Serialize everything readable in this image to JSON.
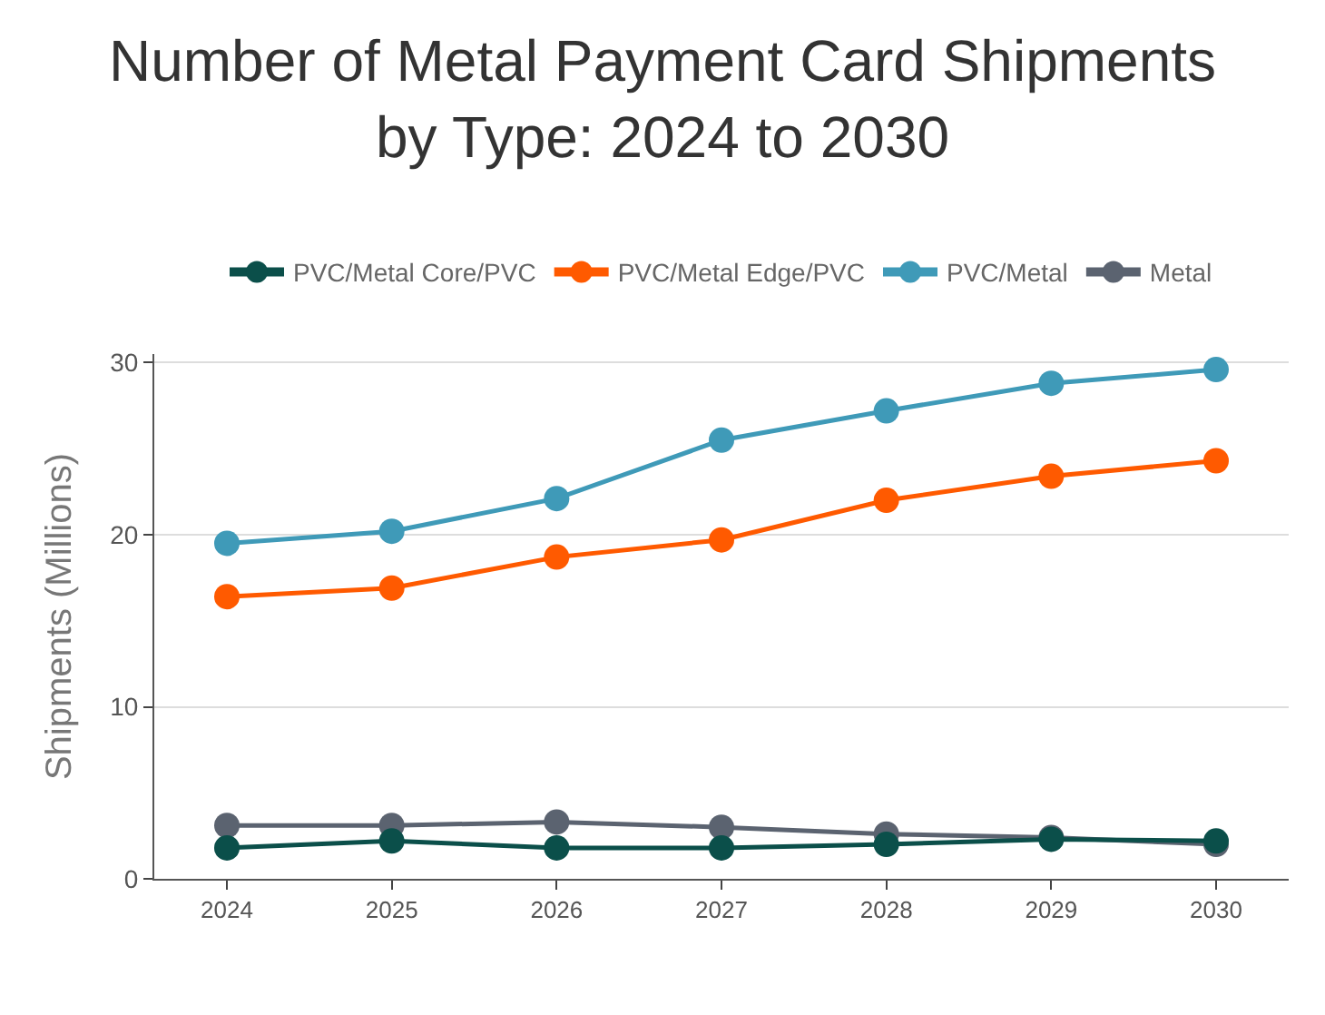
{
  "chart_data": {
    "type": "line",
    "title": "Number of Metal Payment Card Shipments by Type: 2024 to 2030",
    "ylabel": "Shipments (Millions)",
    "categories": [
      "2024",
      "2025",
      "2026",
      "2027",
      "2028",
      "2029",
      "2030"
    ],
    "series": [
      {
        "name": "PVC/Metal Core/PVC",
        "color": "#0b4f4a",
        "values": [
          1.8,
          2.2,
          1.8,
          1.8,
          2.0,
          2.3,
          2.2
        ]
      },
      {
        "name": "PVC/Metal Edge/PVC",
        "color": "#ff5a00",
        "values": [
          16.4,
          16.9,
          18.7,
          19.7,
          22.0,
          23.4,
          24.3
        ]
      },
      {
        "name": "PVC/Metal",
        "color": "#3f9ab8",
        "values": [
          19.5,
          20.2,
          22.1,
          25.5,
          27.2,
          28.8,
          29.6
        ]
      },
      {
        "name": "Metal",
        "color": "#5b6370",
        "values": [
          3.1,
          3.1,
          3.3,
          3.0,
          2.6,
          2.4,
          2.0
        ]
      }
    ],
    "ylim": [
      0,
      30.5
    ],
    "yticks": [
      0,
      10,
      20,
      30
    ],
    "grid": "y",
    "legend": "top",
    "marker": "circle",
    "line_style": "solid"
  }
}
